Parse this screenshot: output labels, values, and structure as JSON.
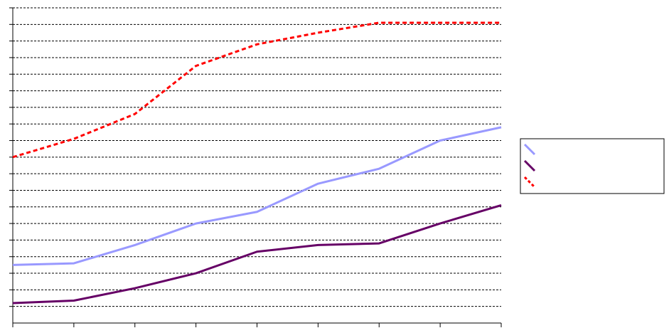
{
  "chart_data": {
    "type": "line",
    "title": "",
    "xlabel": "",
    "ylabel": "",
    "categories": [
      "",
      "",
      "",
      "",
      "",
      "",
      "",
      "",
      ""
    ],
    "ylim": [
      0,
      19
    ],
    "grid": true,
    "legend_position": "right",
    "series": [
      {
        "name": "",
        "color": "#9999ff",
        "style": "solid",
        "values": [
          3.5,
          3.6,
          4.7,
          6.0,
          6.7,
          8.4,
          9.3,
          11.0,
          11.8
        ]
      },
      {
        "name": "",
        "color": "#660066",
        "style": "solid",
        "values": [
          1.2,
          1.35,
          2.1,
          3.0,
          4.3,
          4.7,
          4.8,
          6.0,
          7.1
        ]
      },
      {
        "name": "",
        "color": "#ff0000",
        "style": "dashed",
        "values": [
          10.0,
          11.1,
          12.6,
          15.5,
          16.8,
          17.5,
          18.1,
          18.1,
          18.1
        ]
      }
    ]
  }
}
